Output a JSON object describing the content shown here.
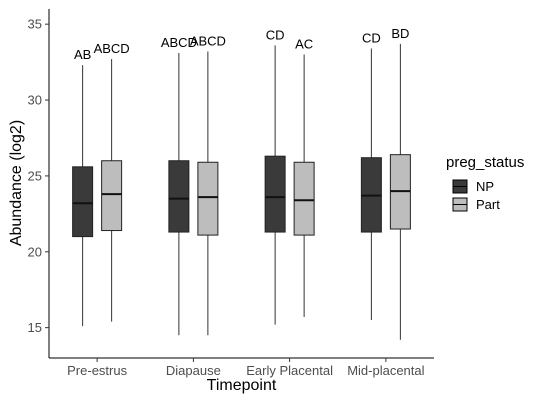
{
  "chart_data": {
    "type": "boxplot",
    "xlabel": "Timepoint",
    "ylabel": "Abundance (log2)",
    "ylim": [
      13,
      36
    ],
    "yticks": [
      15,
      20,
      25,
      30,
      35
    ],
    "grid": false,
    "legend_position": "right",
    "categories": [
      "Pre-estrus",
      "Diapause",
      "Early Placental",
      "Mid-placental"
    ],
    "legend": {
      "title": "preg_status",
      "entries": [
        {
          "name": "NP",
          "color": "#3a3a3a"
        },
        {
          "name": "Part",
          "color": "#bdbdbd"
        }
      ]
    },
    "series": [
      {
        "name": "NP",
        "color": "#3a3a3a",
        "boxes": [
          {
            "min": 15.1,
            "q1": 21.0,
            "median": 23.2,
            "q3": 25.6,
            "max": 32.3,
            "label": "AB"
          },
          {
            "min": 14.5,
            "q1": 21.3,
            "median": 23.5,
            "q3": 26.0,
            "max": 33.1,
            "label": "ABCD"
          },
          {
            "min": 15.2,
            "q1": 21.3,
            "median": 23.6,
            "q3": 26.3,
            "max": 33.6,
            "label": "CD"
          },
          {
            "min": 15.5,
            "q1": 21.3,
            "median": 23.7,
            "q3": 26.2,
            "max": 33.4,
            "label": "CD"
          }
        ]
      },
      {
        "name": "Part",
        "color": "#bdbdbd",
        "boxes": [
          {
            "min": 15.4,
            "q1": 21.4,
            "median": 23.8,
            "q3": 26.0,
            "max": 32.7,
            "label": "ABCD"
          },
          {
            "min": 14.5,
            "q1": 21.1,
            "median": 23.6,
            "q3": 25.9,
            "max": 33.2,
            "label": "ABCD"
          },
          {
            "min": 15.7,
            "q1": 21.1,
            "median": 23.4,
            "q3": 25.9,
            "max": 33.0,
            "label": "AC"
          },
          {
            "min": 14.2,
            "q1": 21.5,
            "median": 24.0,
            "q3": 26.4,
            "max": 33.7,
            "label": "BD"
          }
        ]
      }
    ]
  }
}
